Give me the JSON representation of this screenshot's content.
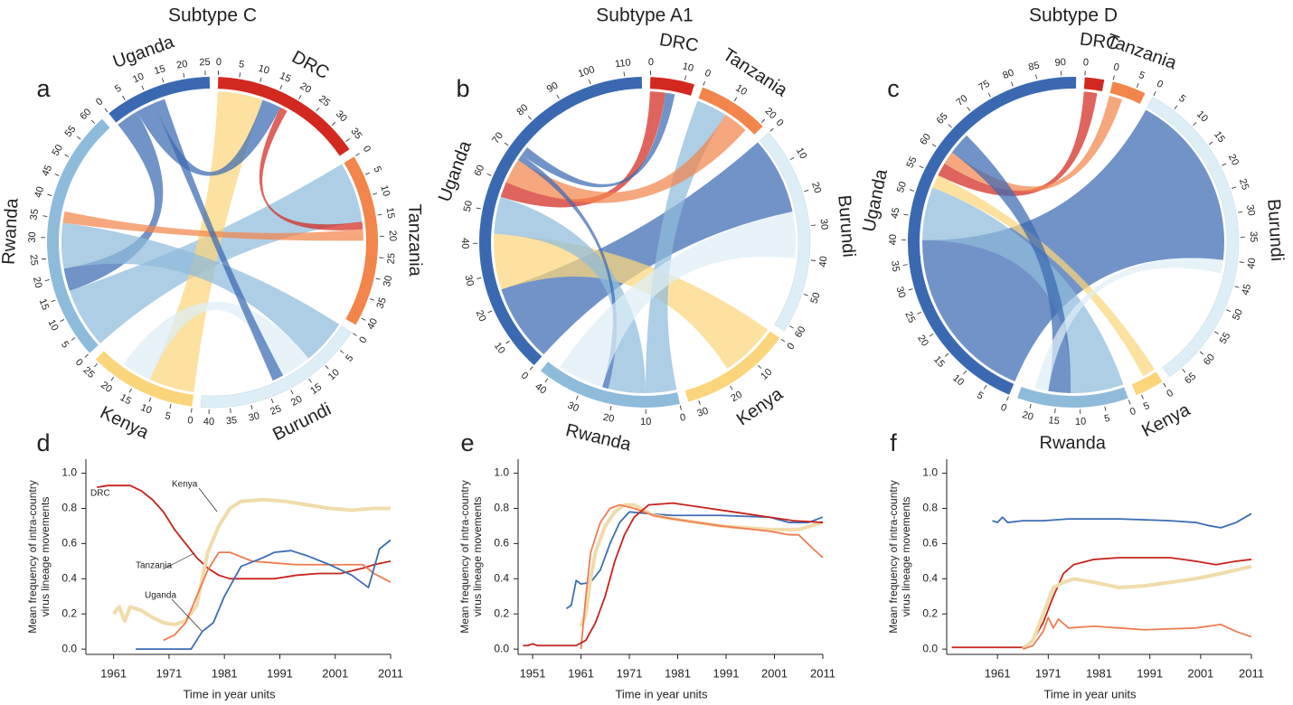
{
  "chart_data": [
    {
      "type": "chord",
      "label": "a",
      "title": "Subtype C",
      "segments": [
        {
          "name": "DRC",
          "color": "#d3281f",
          "size": 37,
          "ticks": [
            0,
            5,
            10,
            15,
            20,
            25,
            30,
            35
          ]
        },
        {
          "name": "Tanzania",
          "color": "#f2854b",
          "size": 42,
          "ticks": [
            0,
            5,
            10,
            15,
            20,
            25,
            30,
            35,
            40
          ]
        },
        {
          "name": "Burundi",
          "color": "#deeef6",
          "size": 42,
          "ticks": [
            0,
            5,
            10,
            15,
            20,
            25,
            30,
            35,
            40
          ]
        },
        {
          "name": "Kenya",
          "color": "#fbd57c",
          "size": 26,
          "ticks": [
            0,
            5,
            10,
            15,
            20,
            25
          ]
        },
        {
          "name": "Rwanda",
          "color": "#8fbbdb",
          "size": 62,
          "ticks": [
            0,
            5,
            10,
            15,
            20,
            25,
            30,
            35,
            40,
            45,
            50,
            55,
            60
          ]
        },
        {
          "name": "Uganda",
          "color": "#3b69b1",
          "size": 26,
          "ticks": [
            0,
            5,
            10,
            15,
            20,
            25
          ]
        }
      ],
      "chords": [
        {
          "from": "Rwanda",
          "to": "Tanzania",
          "value": 16
        },
        {
          "from": "Kenya",
          "to": "DRC",
          "value": 12
        },
        {
          "from": "Uganda",
          "to": "Rwanda",
          "value": 6
        },
        {
          "from": "Rwanda",
          "to": "Burundi",
          "value": 12
        },
        {
          "from": "Uganda",
          "to": "DRC",
          "value": 5
        },
        {
          "from": "DRC",
          "to": "Tanzania",
          "value": 2
        },
        {
          "from": "Tanzania",
          "to": "Rwanda",
          "value": 3
        },
        {
          "from": "Burundi",
          "to": "Kenya",
          "value": 8
        },
        {
          "from": "Uganda",
          "to": "Burundi",
          "value": 3
        }
      ]
    },
    {
      "type": "chord",
      "label": "b",
      "title": "Subtype A1",
      "segments": [
        {
          "name": "DRC",
          "color": "#d3281f",
          "size": 13,
          "ticks": [
            0,
            10
          ]
        },
        {
          "name": "Tanzania",
          "color": "#f2854b",
          "size": 21,
          "ticks": [
            0,
            10,
            20
          ]
        },
        {
          "name": "Burundi",
          "color": "#deeef6",
          "size": 62,
          "ticks": [
            0,
            10,
            20,
            30,
            40,
            50,
            60
          ]
        },
        {
          "name": "Kenya",
          "color": "#fbd57c",
          "size": 33,
          "ticks": [
            0,
            10,
            20,
            30
          ]
        },
        {
          "name": "Rwanda",
          "color": "#8fbbdb",
          "size": 43,
          "ticks": [
            0,
            10,
            20,
            30,
            40
          ]
        },
        {
          "name": "Uganda",
          "color": "#3b69b1",
          "size": 115,
          "ticks": [
            0,
            10,
            20,
            30,
            40,
            50,
            60,
            70,
            80,
            90,
            100,
            110
          ]
        }
      ],
      "chords": [
        {
          "from": "Uganda",
          "to": "Burundi",
          "value": 25
        },
        {
          "from": "Kenya",
          "to": "Uganda",
          "value": 18
        },
        {
          "from": "Rwanda",
          "to": "Tanzania",
          "value": 10
        },
        {
          "from": "Rwanda",
          "to": "Uganda",
          "value": 12
        },
        {
          "from": "DRC",
          "to": "Uganda",
          "value": 5
        },
        {
          "from": "Tanzania",
          "to": "Uganda",
          "value": 8
        },
        {
          "from": "Uganda",
          "to": "Rwanda",
          "value": 2
        },
        {
          "from": "Burundi",
          "to": "Rwanda",
          "value": 15
        },
        {
          "from": "Uganda",
          "to": "DRC",
          "value": 3
        }
      ]
    },
    {
      "type": "chord",
      "label": "c",
      "title": "Subtype D",
      "segments": [
        {
          "name": "DRC",
          "color": "#d3281f",
          "size": 4,
          "ticks": [
            0
          ]
        },
        {
          "name": "Tanzania",
          "color": "#f2854b",
          "size": 7,
          "ticks": [
            0,
            5
          ]
        },
        {
          "name": "Burundi",
          "color": "#deeef6",
          "size": 68,
          "ticks": [
            0,
            5,
            10,
            15,
            20,
            25,
            30,
            35,
            40,
            45,
            50,
            55,
            60,
            65
          ]
        },
        {
          "name": "Kenya",
          "color": "#fbd57c",
          "size": 6,
          "ticks": [
            0,
            5
          ]
        },
        {
          "name": "Rwanda",
          "color": "#8fbbdb",
          "size": 23,
          "ticks": [
            0,
            5,
            10,
            15,
            20
          ]
        },
        {
          "name": "Uganda",
          "color": "#3b69b1",
          "size": 93,
          "ticks": [
            0,
            5,
            10,
            15,
            20,
            25,
            30,
            35,
            40,
            45,
            50,
            55,
            60,
            65,
            70,
            75,
            80,
            85,
            90
          ]
        }
      ],
      "chords": [
        {
          "from": "Uganda",
          "to": "Burundi",
          "value": 40
        },
        {
          "from": "Rwanda",
          "to": "Uganda",
          "value": 12
        },
        {
          "from": "Kenya",
          "to": "Uganda",
          "value": 3
        },
        {
          "from": "DRC",
          "to": "Uganda",
          "value": 3
        },
        {
          "from": "Tanzania",
          "to": "Uganda",
          "value": 3
        },
        {
          "from": "Uganda",
          "to": "Rwanda",
          "value": 5
        },
        {
          "from": "Burundi",
          "to": "Rwanda",
          "value": 3
        }
      ]
    },
    {
      "type": "line",
      "label": "d",
      "xlabel": "Time in year units",
      "ylabel": [
        "Mean frequency of intra-country",
        "virus lineage movements"
      ],
      "xlim": [
        1956,
        2011
      ],
      "xticks": [
        1961,
        1971,
        1981,
        1991,
        2001,
        2011
      ],
      "ylim": [
        -0.03,
        1.08
      ],
      "yticks": [
        {
          "value": 0,
          "label": "0.0"
        },
        {
          "value": 0.2,
          "label": "0.2"
        },
        {
          "value": 0.4,
          "label": "0.4"
        },
        {
          "value": 0.6,
          "label": "0.6"
        },
        {
          "value": 0.8,
          "label": "0.8"
        },
        {
          "value": 1,
          "label": "1.0"
        }
      ],
      "series": [
        {
          "name": "DRC",
          "color": "#c8221c",
          "x": [
            1958,
            1960,
            1964,
            1966,
            1968,
            1970,
            1972,
            1974,
            1976,
            1978,
            1980,
            1982,
            1986,
            1990,
            1994,
            1998,
            2002,
            2006,
            2008,
            2011
          ],
          "values": [
            0.92,
            0.93,
            0.93,
            0.9,
            0.85,
            0.78,
            0.68,
            0.6,
            0.52,
            0.46,
            0.42,
            0.4,
            0.4,
            0.4,
            0.42,
            0.43,
            0.43,
            0.46,
            0.48,
            0.5
          ]
        },
        {
          "name": "Kenya",
          "color": "#f0dbab",
          "x": [
            1961,
            1962,
            1963,
            1964,
            1966,
            1968,
            1970,
            1972,
            1974,
            1976,
            1977,
            1978,
            1980,
            1982,
            1984,
            1988,
            1992,
            1996,
            2000,
            2004,
            2008,
            2011
          ],
          "values": [
            0.2,
            0.24,
            0.16,
            0.24,
            0.22,
            0.18,
            0.15,
            0.14,
            0.16,
            0.25,
            0.4,
            0.55,
            0.7,
            0.8,
            0.84,
            0.85,
            0.84,
            0.82,
            0.8,
            0.79,
            0.8,
            0.8
          ]
        },
        {
          "name": "Tanzania",
          "color": "#ef7c52",
          "x": [
            1970,
            1972,
            1974,
            1976,
            1978,
            1980,
            1982,
            1986,
            1990,
            1994,
            1998,
            2002,
            2006,
            2008,
            2011
          ],
          "values": [
            0.05,
            0.08,
            0.15,
            0.3,
            0.45,
            0.55,
            0.55,
            0.5,
            0.49,
            0.48,
            0.48,
            0.48,
            0.48,
            0.43,
            0.38
          ]
        },
        {
          "name": "Uganda",
          "color": "#3d6db3",
          "x": [
            1965,
            1970,
            1975,
            1977,
            1979,
            1981,
            1984,
            1988,
            1990,
            1993,
            1996,
            2000,
            2004,
            2007,
            2009,
            2011
          ],
          "values": [
            0,
            0,
            0,
            0.1,
            0.15,
            0.3,
            0.47,
            0.52,
            0.55,
            0.56,
            0.53,
            0.48,
            0.42,
            0.35,
            0.57,
            0.62
          ]
        }
      ]
    },
    {
      "type": "line",
      "label": "e",
      "xlabel": "Time in year units",
      "ylabel": [
        "Mean frequency of intra-country",
        "virus lineage movements"
      ],
      "xlim": [
        1948,
        2011
      ],
      "xticks": [
        1951,
        1961,
        1971,
        1981,
        1991,
        2001,
        2011
      ],
      "ylim": [
        -0.03,
        1.08
      ],
      "yticks": [
        {
          "value": 0,
          "label": "0.0"
        },
        {
          "value": 0.2,
          "label": "0.2"
        },
        {
          "value": 0.4,
          "label": "0.4"
        },
        {
          "value": 0.6,
          "label": "0.6"
        },
        {
          "value": 0.8,
          "label": "0.8"
        },
        {
          "value": 1,
          "label": "1.0"
        }
      ],
      "series": [
        {
          "color": "#3d6db3",
          "x": [
            1958,
            1959,
            1960,
            1961,
            1963,
            1965,
            1967,
            1969,
            1971,
            1975,
            1980,
            1990,
            2000,
            2004,
            2008,
            2011
          ],
          "values": [
            0.23,
            0.25,
            0.39,
            0.37,
            0.38,
            0.45,
            0.6,
            0.72,
            0.78,
            0.77,
            0.76,
            0.76,
            0.75,
            0.72,
            0.72,
            0.75
          ]
        },
        {
          "color": "#f0dbab",
          "x": [
            1961,
            1962,
            1963,
            1964,
            1966,
            1968,
            1970,
            1972,
            1976,
            1980,
            1990,
            2000,
            2006,
            2011
          ],
          "values": [
            0.13,
            0.2,
            0.4,
            0.55,
            0.7,
            0.78,
            0.82,
            0.82,
            0.76,
            0.74,
            0.7,
            0.68,
            0.68,
            0.72
          ]
        },
        {
          "color": "#ef7c52",
          "x": [
            1961,
            1962,
            1963,
            1965,
            1967,
            1969,
            1972,
            1976,
            1980,
            1990,
            2000,
            2004,
            2006,
            2009,
            2011
          ],
          "values": [
            0,
            0.3,
            0.55,
            0.72,
            0.8,
            0.82,
            0.8,
            0.76,
            0.74,
            0.7,
            0.67,
            0.65,
            0.65,
            0.57,
            0.52
          ]
        },
        {
          "color": "#c8221c",
          "x": [
            1949,
            1950,
            1951,
            1952,
            1960,
            1962,
            1964,
            1966,
            1968,
            1970,
            1972,
            1975,
            1980,
            1985,
            1990,
            1995,
            2000,
            2005,
            2011
          ],
          "values": [
            0.02,
            0.02,
            0.03,
            0.02,
            0.02,
            0.05,
            0.15,
            0.3,
            0.5,
            0.65,
            0.75,
            0.82,
            0.83,
            0.81,
            0.79,
            0.77,
            0.75,
            0.73,
            0.72
          ]
        }
      ]
    },
    {
      "type": "line",
      "label": "f",
      "xlabel": "Time in year units",
      "ylabel": [
        "Mean frequency of intra-country",
        "virus lineage movements"
      ],
      "xlim": [
        1951,
        2011
      ],
      "xticks": [
        1961,
        1971,
        1981,
        1991,
        2001,
        2011
      ],
      "ylim": [
        -0.03,
        1.08
      ],
      "yticks": [
        {
          "value": 0,
          "label": "0.0"
        },
        {
          "value": 0.2,
          "label": "0.2"
        },
        {
          "value": 0.4,
          "label": "0.4"
        },
        {
          "value": 0.6,
          "label": "0.6"
        },
        {
          "value": 0.8,
          "label": "0.8"
        },
        {
          "value": 1,
          "label": "1.0"
        }
      ],
      "series": [
        {
          "color": "#3d6db3",
          "x": [
            1960,
            1961,
            1962,
            1963,
            1966,
            1970,
            1975,
            1985,
            1995,
            2000,
            2003,
            2005,
            2008,
            2011
          ],
          "values": [
            0.73,
            0.72,
            0.75,
            0.72,
            0.73,
            0.73,
            0.74,
            0.74,
            0.73,
            0.72,
            0.7,
            0.69,
            0.72,
            0.77
          ]
        },
        {
          "color": "#c8221c",
          "x": [
            1952,
            1966,
            1968,
            1970,
            1972,
            1974,
            1976,
            1980,
            1985,
            1995,
            2000,
            2004,
            2008,
            2011
          ],
          "values": [
            0.01,
            0.01,
            0.05,
            0.15,
            0.3,
            0.43,
            0.48,
            0.51,
            0.52,
            0.52,
            0.5,
            0.48,
            0.5,
            0.51
          ]
        },
        {
          "color": "#f0dbab",
          "x": [
            1966,
            1968,
            1970,
            1972,
            1974,
            1976,
            1980,
            1985,
            1990,
            1995,
            2000,
            2005,
            2011
          ],
          "values": [
            0,
            0.05,
            0.2,
            0.35,
            0.38,
            0.4,
            0.38,
            0.35,
            0.36,
            0.38,
            0.4,
            0.43,
            0.47
          ]
        },
        {
          "color": "#ef7c52",
          "x": [
            1966,
            1968,
            1970,
            1971,
            1972,
            1973,
            1975,
            1980,
            1985,
            1990,
            2000,
            2005,
            2008,
            2011
          ],
          "values": [
            0,
            0.02,
            0.1,
            0.18,
            0.12,
            0.17,
            0.12,
            0.13,
            0.12,
            0.11,
            0.12,
            0.14,
            0.1,
            0.07
          ]
        }
      ]
    }
  ]
}
